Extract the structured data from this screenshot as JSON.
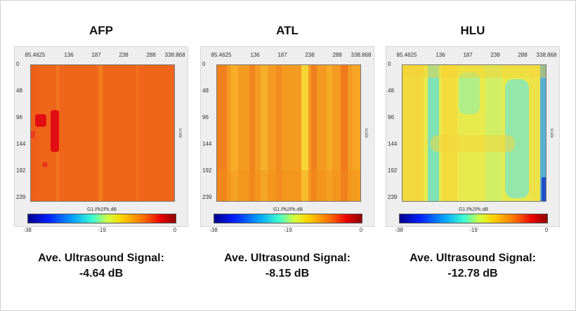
{
  "panels": [
    {
      "title": "AFP",
      "caption_label": "Ave. Ultrasound Signal:",
      "caption_value": "-4.64 dB",
      "colorbar_title": "G1.Pk2Pk.dB",
      "side_label": "scale",
      "x_ticks": [
        "85.4625",
        "136",
        "187",
        "238",
        "288",
        "338.868"
      ],
      "y_ticks": [
        "0",
        "48",
        "96",
        "144",
        "192",
        "239"
      ],
      "cb_ticks": [
        "-38",
        "-19",
        "0"
      ]
    },
    {
      "title": "ATL",
      "caption_label": "Ave. Ultrasound Signal:",
      "caption_value": "-8.15 dB",
      "colorbar_title": "G1.Pk2Pk.dB",
      "side_label": "scale",
      "x_ticks": [
        "85.4625",
        "136",
        "187",
        "238",
        "288",
        "338.868"
      ],
      "y_ticks": [
        "0",
        "48",
        "96",
        "144",
        "192",
        "239"
      ],
      "cb_ticks": [
        "-38",
        "-19",
        "0"
      ]
    },
    {
      "title": "HLU",
      "caption_label": "Ave. Ultrasound Signal:",
      "caption_value": "-12.78 dB",
      "colorbar_title": "G1.Pk2Pk.dB",
      "side_label": "scale",
      "x_ticks": [
        "85.4625",
        "136",
        "187",
        "238",
        "288",
        "338.868"
      ],
      "y_ticks": [
        "0",
        "48",
        "96",
        "144",
        "192",
        "239"
      ],
      "cb_ticks": [
        "-38",
        "-19",
        "0"
      ]
    }
  ],
  "colors": {
    "afp_base": "#f06a1c",
    "atl_base": "#f5a21e",
    "hlu_base": "#f2e84a",
    "hot_spot": "#e30d14",
    "cyan_band": "#5fe0d0"
  }
}
